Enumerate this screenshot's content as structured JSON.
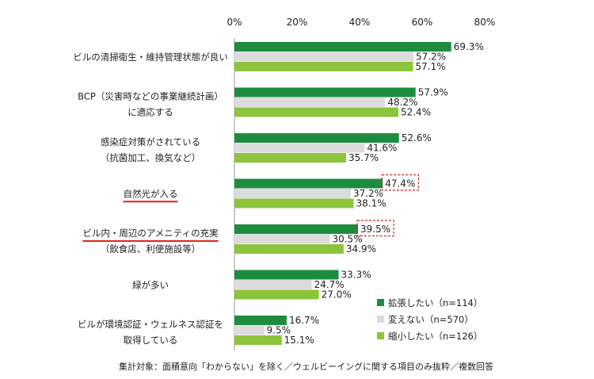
{
  "chart_data": {
    "type": "bar",
    "orientation": "horizontal",
    "xlim": [
      0,
      80
    ],
    "x_ticks": [
      "0%",
      "20%",
      "40%",
      "60%",
      "80%"
    ],
    "categories": [
      [
        "ビルの清掃衛生・維持管理状態が良い"
      ],
      [
        "BCP（災害時などの事業継続計画）",
        "に適応する"
      ],
      [
        "感染症対策がされている",
        "（抗菌加工、換気など）"
      ],
      [
        "自然光が入る"
      ],
      [
        "ビル内・周辺のアメニティの充実",
        "（飲食店、利便施設等）"
      ],
      [
        "緑が多い"
      ],
      [
        "ビルが環境認証・ウェルネス認証を",
        "取得している"
      ]
    ],
    "underlined_categories": [
      3,
      4
    ],
    "highlighted_values": [
      [
        3,
        0
      ],
      [
        4,
        0
      ]
    ],
    "series": [
      {
        "name": "拡張したい（n=114）",
        "color": "#1e8c3f",
        "values": [
          69.3,
          57.9,
          52.6,
          47.4,
          39.5,
          33.3,
          16.7
        ],
        "labels": [
          "69.3%",
          "57.9%",
          "52.6%",
          "47.4%",
          "39.5%",
          "33.3%",
          "16.7%"
        ]
      },
      {
        "name": "変えない（n=570）",
        "color": "#dcdcdc",
        "values": [
          57.2,
          48.2,
          41.6,
          37.2,
          30.5,
          24.7,
          9.5
        ],
        "labels": [
          "57.2%",
          "48.2%",
          "41.6%",
          "37.2%",
          "30.5%",
          "24.7%",
          "9.5%"
        ]
      },
      {
        "name": "縮小したい（n=126）",
        "color": "#8cc43c",
        "values": [
          57.1,
          52.4,
          35.7,
          38.1,
          34.9,
          27.0,
          15.1
        ],
        "labels": [
          "57.1%",
          "52.4%",
          "35.7%",
          "38.1%",
          "34.9%",
          "27.0%",
          "15.1%"
        ]
      }
    ],
    "legend_position": "bottom-right",
    "grid": false,
    "footnote": "集計対象：面積意向「わからない」を除く／ウェルビーイングに関する項目のみ抜粋／複数回答"
  }
}
